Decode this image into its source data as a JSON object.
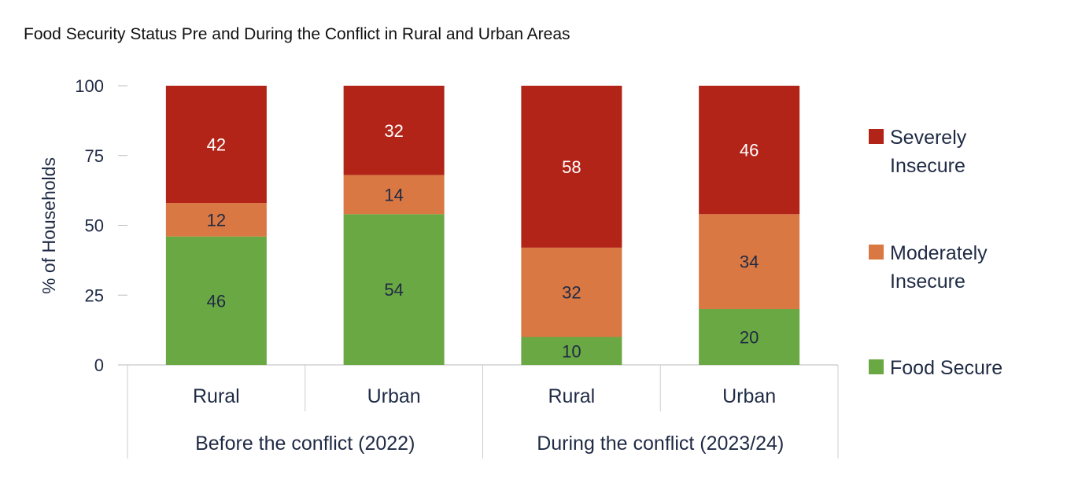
{
  "chart_data": {
    "type": "bar",
    "stacked": true,
    "title": "Food Security Status Pre and During the Conflict in Rural and Urban Areas",
    "ylabel": "% of Households",
    "xlabel": "",
    "ylim": [
      0,
      100
    ],
    "yticks": [
      "0",
      "25",
      "50",
      "75",
      "100"
    ],
    "categories": [
      "Rural",
      "Urban",
      "Rural",
      "Urban"
    ],
    "groups": [
      {
        "label": "Before the conflict (2022)",
        "size": 2
      },
      {
        "label": "During the conflict (2023/24)",
        "size": 2
      }
    ],
    "series": [
      {
        "name": "Food Secure",
        "color": "#6aa843",
        "text_color": "#1f2a44",
        "values": [
          46,
          54,
          10,
          20
        ]
      },
      {
        "name": "Moderately Insecure",
        "legend_lines": [
          "Moderately",
          "Insecure"
        ],
        "color": "#d97843",
        "text_color": "#1f2a44",
        "values": [
          12,
          14,
          32,
          34
        ]
      },
      {
        "name": "Severely Insecure",
        "legend_lines": [
          "Severely",
          "Insecure"
        ],
        "color": "#b22418",
        "text_color": "#ffffff",
        "values": [
          42,
          32,
          58,
          46
        ]
      }
    ],
    "grid": false,
    "legend_position": "right"
  }
}
